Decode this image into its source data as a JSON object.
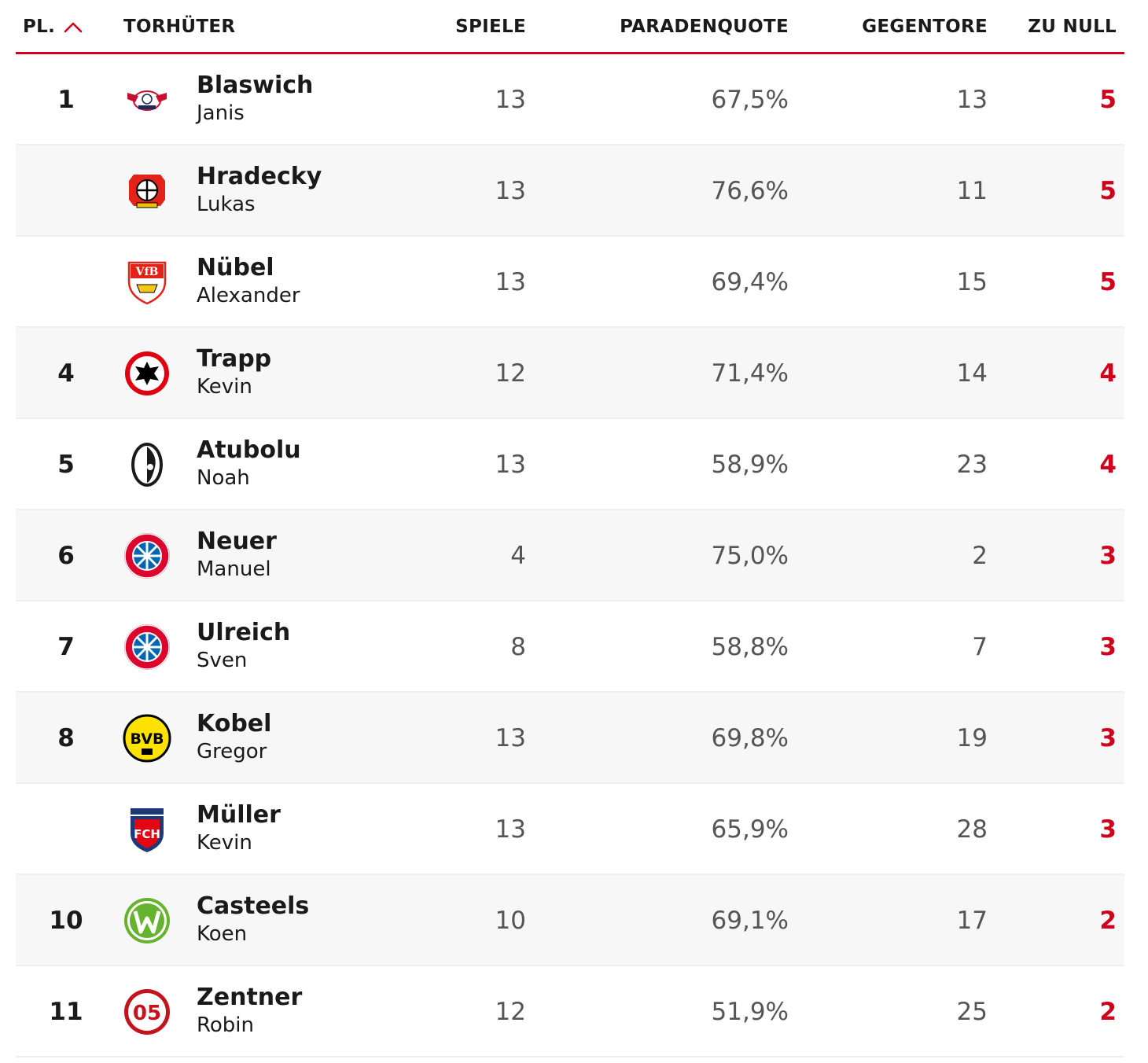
{
  "colors": {
    "accent": "#d0021b",
    "row_alt": "#f7f7f7",
    "text": "#1a1a1a",
    "muted": "#555555"
  },
  "header": {
    "rank": "PL.",
    "rank_sort_icon": "chevron-up-icon",
    "player": "TORHÜTER",
    "games": "SPIELE",
    "save_rate": "PARADENQUOTE",
    "goals_against": "GEGENTORE",
    "clean_sheets": "ZU NULL"
  },
  "rows": [
    {
      "rank": "1",
      "last_name": "Blaswich",
      "first_name": "Janis",
      "club_icon": "rb-leipzig-crest-icon",
      "games": "13",
      "save_rate": "67,5%",
      "goals_against": "13",
      "clean_sheets": "5"
    },
    {
      "rank": "",
      "last_name": "Hradecky",
      "first_name": "Lukas",
      "club_icon": "bayer-leverkusen-crest-icon",
      "games": "13",
      "save_rate": "76,6%",
      "goals_against": "11",
      "clean_sheets": "5"
    },
    {
      "rank": "",
      "last_name": "Nübel",
      "first_name": "Alexander",
      "club_icon": "vfb-stuttgart-crest-icon",
      "games": "13",
      "save_rate": "69,4%",
      "goals_against": "15",
      "clean_sheets": "5"
    },
    {
      "rank": "4",
      "last_name": "Trapp",
      "first_name": "Kevin",
      "club_icon": "eintracht-frankfurt-crest-icon",
      "games": "12",
      "save_rate": "71,4%",
      "goals_against": "14",
      "clean_sheets": "4"
    },
    {
      "rank": "5",
      "last_name": "Atubolu",
      "first_name": "Noah",
      "club_icon": "sc-freiburg-crest-icon",
      "games": "13",
      "save_rate": "58,9%",
      "goals_against": "23",
      "clean_sheets": "4"
    },
    {
      "rank": "6",
      "last_name": "Neuer",
      "first_name": "Manuel",
      "club_icon": "fc-bayern-crest-icon",
      "games": "4",
      "save_rate": "75,0%",
      "goals_against": "2",
      "clean_sheets": "3"
    },
    {
      "rank": "7",
      "last_name": "Ulreich",
      "first_name": "Sven",
      "club_icon": "fc-bayern-crest-icon",
      "games": "8",
      "save_rate": "58,8%",
      "goals_against": "7",
      "clean_sheets": "3"
    },
    {
      "rank": "8",
      "last_name": "Kobel",
      "first_name": "Gregor",
      "club_icon": "bvb-crest-icon",
      "games": "13",
      "save_rate": "69,8%",
      "goals_against": "19",
      "clean_sheets": "3"
    },
    {
      "rank": "",
      "last_name": "Müller",
      "first_name": "Kevin",
      "club_icon": "fc-heidenheim-crest-icon",
      "games": "13",
      "save_rate": "65,9%",
      "goals_against": "28",
      "clean_sheets": "3"
    },
    {
      "rank": "10",
      "last_name": "Casteels",
      "first_name": "Koen",
      "club_icon": "vfl-wolfsburg-crest-icon",
      "games": "10",
      "save_rate": "69,1%",
      "goals_against": "17",
      "clean_sheets": "2"
    },
    {
      "rank": "11",
      "last_name": "Zentner",
      "first_name": "Robin",
      "club_icon": "mainz-05-crest-icon",
      "games": "12",
      "save_rate": "51,9%",
      "goals_against": "25",
      "clean_sheets": "2"
    }
  ]
}
